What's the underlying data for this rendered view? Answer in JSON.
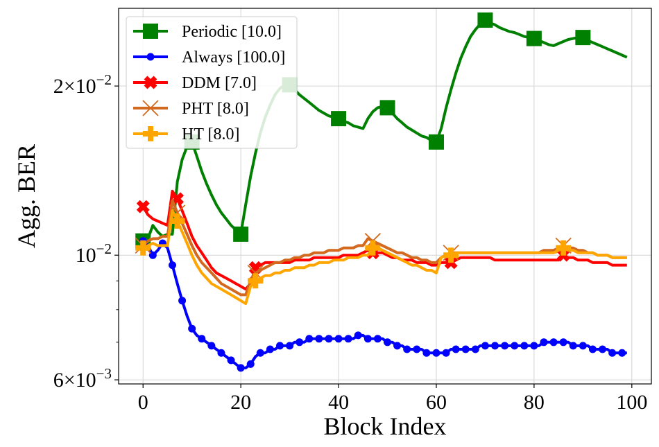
{
  "chart_data": {
    "type": "line",
    "title": "",
    "xlabel": "Block Index",
    "ylabel": "Agg. BER",
    "yscale": "log",
    "xlim": [
      -5,
      104
    ],
    "ylim": [
      0.0059,
      0.0275
    ],
    "xticks": [
      {
        "value": 0,
        "label": "0"
      },
      {
        "value": 20,
        "label": "20"
      },
      {
        "value": 40,
        "label": "40"
      },
      {
        "value": 60,
        "label": "60"
      },
      {
        "value": 80,
        "label": "80"
      },
      {
        "value": 100,
        "label": "100"
      }
    ],
    "yticks": [
      {
        "value": 0.006,
        "mantissa": "6",
        "times": "×",
        "base": "10",
        "exp": "−3"
      },
      {
        "value": 0.01,
        "mantissa": "",
        "times": "",
        "base": "10",
        "exp": "−2"
      },
      {
        "value": 0.02,
        "mantissa": "2",
        "times": "×",
        "base": "10",
        "exp": "−2"
      }
    ],
    "minor_yticks": [
      0.007,
      0.008,
      0.009
    ],
    "grid": true,
    "legend_position": "top-left",
    "series": [
      {
        "name": "Periodic [10.0]",
        "color": "#008000",
        "marker": "square",
        "x": [
          0,
          1,
          2,
          3,
          4,
          5,
          6,
          7,
          8,
          9,
          10,
          11,
          12,
          13,
          14,
          15,
          16,
          17,
          18,
          19,
          20,
          21,
          22,
          23,
          24,
          25,
          26,
          27,
          28,
          29,
          30,
          31,
          32,
          33,
          34,
          35,
          36,
          37,
          38,
          39,
          40,
          41,
          42,
          43,
          44,
          45,
          46,
          47,
          48,
          49,
          50,
          51,
          52,
          53,
          54,
          55,
          56,
          57,
          58,
          59,
          60,
          61,
          62,
          63,
          64,
          65,
          66,
          67,
          68,
          69,
          70,
          71,
          72,
          73,
          74,
          75,
          76,
          77,
          78,
          79,
          80,
          81,
          82,
          83,
          84,
          85,
          86,
          87,
          88,
          89,
          90,
          91,
          92,
          93,
          94,
          95,
          96,
          97,
          98,
          99
        ],
        "y": [
          0.0106,
          0.0107,
          0.0113,
          0.011,
          0.0108,
          0.0109,
          0.0109,
          0.0135,
          0.0148,
          0.0156,
          0.0159,
          0.015,
          0.0141,
          0.0134,
          0.0128,
          0.0123,
          0.0119,
          0.0116,
          0.0113,
          0.0111,
          0.0109,
          0.0123,
          0.0138,
          0.0152,
          0.0165,
          0.0176,
          0.0185,
          0.0193,
          0.0198,
          0.0201,
          0.0201,
          0.0197,
          0.0193,
          0.019,
          0.0187,
          0.0184,
          0.0181,
          0.0179,
          0.0177,
          0.0176,
          0.0175,
          0.0173,
          0.0172,
          0.017,
          0.0169,
          0.0168,
          0.0175,
          0.018,
          0.0183,
          0.0184,
          0.0183,
          0.0179,
          0.0175,
          0.0172,
          0.0169,
          0.0167,
          0.0165,
          0.0163,
          0.0162,
          0.016,
          0.0159,
          0.0168,
          0.0183,
          0.0197,
          0.0211,
          0.0224,
          0.0235,
          0.0245,
          0.0252,
          0.0258,
          0.0262,
          0.0259,
          0.0257,
          0.0254,
          0.0252,
          0.025,
          0.0249,
          0.0247,
          0.0245,
          0.0244,
          0.0243,
          0.0241,
          0.0239,
          0.0237,
          0.0236,
          0.0238,
          0.024,
          0.0242,
          0.0243,
          0.0244,
          0.0244,
          0.0241,
          0.0239,
          0.0237,
          0.0235,
          0.0233,
          0.0231,
          0.0229,
          0.0227,
          0.0225
        ],
        "markers_x": [
          0,
          10,
          20,
          30,
          40,
          50,
          60,
          70,
          80,
          90
        ]
      },
      {
        "name": "Always [100.0]",
        "color": "#0000ff",
        "marker": "circle",
        "x": [
          0,
          1,
          2,
          3,
          4,
          5,
          6,
          7,
          8,
          9,
          10,
          11,
          12,
          13,
          14,
          15,
          16,
          17,
          18,
          19,
          20,
          21,
          22,
          23,
          24,
          25,
          26,
          27,
          28,
          29,
          30,
          31,
          32,
          33,
          34,
          35,
          36,
          37,
          38,
          39,
          40,
          41,
          42,
          43,
          44,
          45,
          46,
          47,
          48,
          49,
          50,
          51,
          52,
          53,
          54,
          55,
          56,
          57,
          58,
          59,
          60,
          61,
          62,
          63,
          64,
          65,
          66,
          67,
          68,
          69,
          70,
          71,
          72,
          73,
          74,
          75,
          76,
          77,
          78,
          79,
          80,
          81,
          82,
          83,
          84,
          85,
          86,
          87,
          88,
          89,
          90,
          91,
          92,
          93,
          94,
          95,
          96,
          97,
          98,
          99
        ],
        "y": [
          0.0106,
          0.0104,
          0.01,
          0.0102,
          0.0105,
          0.0103,
          0.0096,
          0.0089,
          0.0083,
          0.0078,
          0.0074,
          0.0072,
          0.0071,
          0.007,
          0.0069,
          0.0068,
          0.0067,
          0.0066,
          0.0065,
          0.0064,
          0.0063,
          0.0063,
          0.0064,
          0.0066,
          0.0067,
          0.0067,
          0.0068,
          0.0068,
          0.0069,
          0.0069,
          0.0069,
          0.007,
          0.007,
          0.007,
          0.0071,
          0.0071,
          0.0071,
          0.0071,
          0.0071,
          0.0071,
          0.0071,
          0.0071,
          0.0071,
          0.0071,
          0.0072,
          0.0072,
          0.0071,
          0.0071,
          0.0071,
          0.0071,
          0.007,
          0.007,
          0.0069,
          0.0069,
          0.0068,
          0.0068,
          0.0068,
          0.0068,
          0.0067,
          0.0067,
          0.0067,
          0.0067,
          0.0067,
          0.0068,
          0.0068,
          0.0068,
          0.0068,
          0.0068,
          0.0068,
          0.0069,
          0.0069,
          0.0069,
          0.0069,
          0.0069,
          0.0069,
          0.0069,
          0.0069,
          0.0069,
          0.0069,
          0.0069,
          0.0069,
          0.0069,
          0.007,
          0.007,
          0.007,
          0.007,
          0.007,
          0.007,
          0.0069,
          0.0069,
          0.0069,
          0.0069,
          0.0068,
          0.0068,
          0.0068,
          0.0068,
          0.0067,
          0.0067,
          0.0067,
          0.0067
        ],
        "markers_every": 2
      },
      {
        "name": "DDM [7.0]",
        "color": "#ff0000",
        "marker": "x-bold",
        "x": [
          0,
          1,
          2,
          3,
          4,
          5,
          6,
          7,
          8,
          9,
          10,
          11,
          12,
          13,
          14,
          15,
          16,
          17,
          18,
          19,
          20,
          21,
          22,
          23,
          24,
          25,
          26,
          27,
          28,
          29,
          30,
          31,
          32,
          33,
          34,
          35,
          36,
          37,
          38,
          39,
          40,
          41,
          42,
          43,
          44,
          45,
          46,
          47,
          48,
          49,
          50,
          51,
          52,
          53,
          54,
          55,
          56,
          57,
          58,
          59,
          60,
          61,
          62,
          63,
          64,
          65,
          66,
          67,
          68,
          69,
          70,
          71,
          72,
          73,
          74,
          75,
          76,
          77,
          78,
          79,
          80,
          81,
          82,
          83,
          84,
          85,
          86,
          87,
          88,
          89,
          90,
          91,
          92,
          93,
          94,
          95,
          96,
          97,
          98,
          99
        ],
        "y": [
          0.0122,
          0.0118,
          0.0116,
          0.0115,
          0.0114,
          0.0113,
          0.013,
          0.0126,
          0.012,
          0.0114,
          0.0108,
          0.0104,
          0.0101,
          0.0098,
          0.0095,
          0.0093,
          0.0092,
          0.0091,
          0.009,
          0.0089,
          0.0088,
          0.0087,
          0.0089,
          0.0095,
          0.0096,
          0.0097,
          0.0097,
          0.0097,
          0.0097,
          0.0097,
          0.0097,
          0.0098,
          0.0098,
          0.0098,
          0.0098,
          0.0099,
          0.0099,
          0.0099,
          0.0099,
          0.0099,
          0.0099,
          0.01,
          0.01,
          0.01,
          0.01,
          0.0101,
          0.0102,
          0.0101,
          0.0101,
          0.0101,
          0.01,
          0.0099,
          0.0099,
          0.0098,
          0.0098,
          0.0098,
          0.0097,
          0.0097,
          0.0097,
          0.0096,
          0.0096,
          0.0097,
          0.0097,
          0.0097,
          0.0098,
          0.0099,
          0.0099,
          0.0099,
          0.0099,
          0.0099,
          0.0099,
          0.0099,
          0.0098,
          0.0098,
          0.0098,
          0.0098,
          0.0098,
          0.0098,
          0.0098,
          0.0098,
          0.0098,
          0.0098,
          0.0098,
          0.0098,
          0.0098,
          0.0098,
          0.01,
          0.0099,
          0.0099,
          0.0098,
          0.0098,
          0.0098,
          0.0097,
          0.0097,
          0.0097,
          0.0097,
          0.0096,
          0.0096,
          0.0096,
          0.0096
        ],
        "markers_x": [
          0,
          7,
          23,
          47,
          63,
          86
        ]
      },
      {
        "name": "PHT [8.0]",
        "color": "#d2691e",
        "marker": "x-thin",
        "x": [
          0,
          1,
          2,
          3,
          4,
          5,
          6,
          7,
          8,
          9,
          10,
          11,
          12,
          13,
          14,
          15,
          16,
          17,
          18,
          19,
          20,
          21,
          22,
          23,
          24,
          25,
          26,
          27,
          28,
          29,
          30,
          31,
          32,
          33,
          34,
          35,
          36,
          37,
          38,
          39,
          40,
          41,
          42,
          43,
          44,
          45,
          46,
          47,
          48,
          49,
          50,
          51,
          52,
          53,
          54,
          55,
          56,
          57,
          58,
          59,
          60,
          61,
          62,
          63,
          64,
          65,
          66,
          67,
          68,
          69,
          70,
          71,
          72,
          73,
          74,
          75,
          76,
          77,
          78,
          79,
          80,
          81,
          82,
          83,
          84,
          85,
          86,
          87,
          88,
          89,
          90,
          91,
          92,
          93,
          94,
          95,
          96,
          97,
          98,
          99
        ],
        "y": [
          0.0104,
          0.0106,
          0.0107,
          0.0107,
          0.0108,
          0.0108,
          0.0125,
          0.0119,
          0.0114,
          0.0109,
          0.0104,
          0.01,
          0.0097,
          0.0095,
          0.0093,
          0.0091,
          0.0089,
          0.0088,
          0.0087,
          0.0086,
          0.0085,
          0.0085,
          0.009,
          0.0093,
          0.0094,
          0.0095,
          0.0096,
          0.0097,
          0.0097,
          0.0098,
          0.0098,
          0.0099,
          0.0099,
          0.01,
          0.01,
          0.0101,
          0.0101,
          0.0101,
          0.0102,
          0.0102,
          0.0102,
          0.0103,
          0.0103,
          0.0103,
          0.0104,
          0.0104,
          0.0107,
          0.0106,
          0.0105,
          0.0104,
          0.0103,
          0.0102,
          0.0101,
          0.0101,
          0.01,
          0.0099,
          0.0099,
          0.0098,
          0.0098,
          0.0097,
          0.0097,
          0.0099,
          0.01,
          0.0101,
          0.0101,
          0.0101,
          0.0101,
          0.0101,
          0.0101,
          0.0101,
          0.0101,
          0.0101,
          0.0101,
          0.0101,
          0.0101,
          0.0101,
          0.0101,
          0.0101,
          0.0101,
          0.0101,
          0.0101,
          0.0101,
          0.0102,
          0.0102,
          0.0102,
          0.0103,
          0.0104,
          0.0103,
          0.0103,
          0.0102,
          0.0102,
          0.0101,
          0.0101,
          0.01,
          0.01,
          0.01,
          0.0099,
          0.0099,
          0.0099,
          0.0099
        ],
        "markers_x": [
          0,
          7,
          23,
          47,
          63,
          86
        ]
      },
      {
        "name": "HT [8.0]",
        "color": "#ffa500",
        "marker": "plus-bold",
        "x": [
          0,
          1,
          2,
          3,
          4,
          5,
          6,
          7,
          8,
          9,
          10,
          11,
          12,
          13,
          14,
          15,
          16,
          17,
          18,
          19,
          20,
          21,
          22,
          23,
          24,
          25,
          26,
          27,
          28,
          29,
          30,
          31,
          32,
          33,
          34,
          35,
          36,
          37,
          38,
          39,
          40,
          41,
          42,
          43,
          44,
          45,
          46,
          47,
          48,
          49,
          50,
          51,
          52,
          53,
          54,
          55,
          56,
          57,
          58,
          59,
          60,
          61,
          62,
          63,
          64,
          65,
          66,
          67,
          68,
          69,
          70,
          71,
          72,
          73,
          74,
          75,
          76,
          77,
          78,
          79,
          80,
          81,
          82,
          83,
          84,
          85,
          86,
          87,
          88,
          89,
          90,
          91,
          92,
          93,
          94,
          95,
          96,
          97,
          98,
          99
        ],
        "y": [
          0.0103,
          0.0104,
          0.0105,
          0.0104,
          0.0104,
          0.0104,
          0.012,
          0.0115,
          0.011,
          0.0105,
          0.01,
          0.0096,
          0.0093,
          0.0091,
          0.0089,
          0.0088,
          0.0087,
          0.0086,
          0.0085,
          0.0084,
          0.0083,
          0.0082,
          0.0088,
          0.009,
          0.0091,
          0.0092,
          0.0092,
          0.0093,
          0.0093,
          0.0094,
          0.0094,
          0.0095,
          0.0095,
          0.0095,
          0.0096,
          0.0096,
          0.0097,
          0.0097,
          0.0097,
          0.0098,
          0.0098,
          0.0098,
          0.0099,
          0.0099,
          0.0099,
          0.01,
          0.01,
          0.0103,
          0.0103,
          0.0102,
          0.0101,
          0.01,
          0.0099,
          0.0098,
          0.0097,
          0.0096,
          0.0096,
          0.0095,
          0.0094,
          0.0094,
          0.0093,
          0.0099,
          0.01,
          0.01,
          0.0101,
          0.0101,
          0.0101,
          0.0101,
          0.0101,
          0.0101,
          0.0101,
          0.0101,
          0.0101,
          0.0101,
          0.0101,
          0.0101,
          0.0101,
          0.0101,
          0.0101,
          0.0101,
          0.0101,
          0.0101,
          0.0101,
          0.0101,
          0.0101,
          0.0102,
          0.0103,
          0.0102,
          0.0102,
          0.0101,
          0.0101,
          0.0101,
          0.0101,
          0.01,
          0.01,
          0.01,
          0.0099,
          0.0099,
          0.0099,
          0.0099
        ],
        "markers_x": [
          0,
          7,
          23,
          47,
          63,
          86
        ]
      }
    ]
  }
}
